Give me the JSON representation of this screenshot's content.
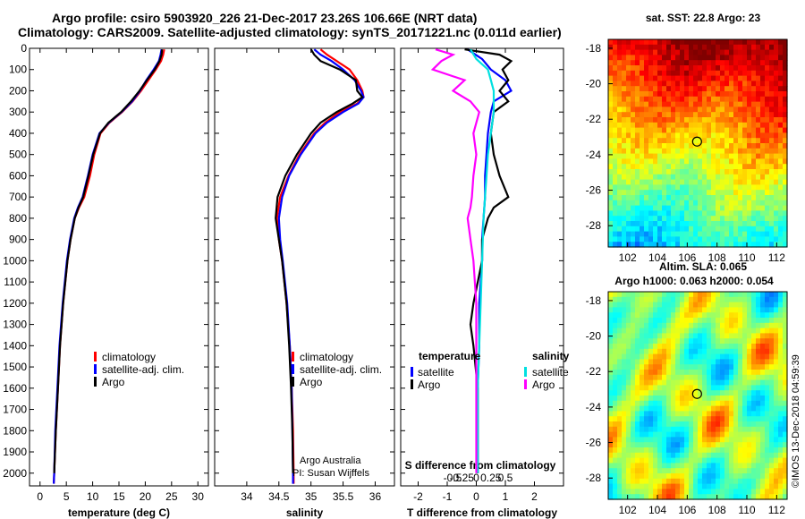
{
  "title": {
    "line1": "Argo profile: csiro 5903920_226 21-Dec-2017 23.26S 106.66E (NRT data)",
    "line2": "Climatology: CARS2009. Satellite-adjusted climatology: synTS_20171221.nc (0.011d earlier)"
  },
  "colors": {
    "climatology": "#ff0000",
    "satellite": "#0000ff",
    "argo": "#000000",
    "sal_satellite": "#00e0e0",
    "sal_argo": "#ff00ff"
  },
  "credit": {
    "line1": "Argo Australia",
    "line2": "PI: Susan Wijffels"
  },
  "watermark": "©IMOS 13-Dec-2018 04:59:39",
  "depth_ticks": [
    0,
    100,
    200,
    300,
    400,
    500,
    600,
    700,
    800,
    900,
    1000,
    1100,
    1200,
    1300,
    1400,
    1500,
    1600,
    1700,
    1800,
    1900,
    2000
  ],
  "chart_data": [
    {
      "type": "line",
      "id": "temperature",
      "xlabel": "temperature (deg C)",
      "ylabel": "pressure",
      "xlim": [
        -2,
        32
      ],
      "ylim": [
        0,
        2060
      ],
      "xticks": [
        0,
        5,
        10,
        15,
        20,
        25,
        30
      ],
      "legend": [
        "climatology",
        "satellite-adj. clim.",
        "Argo"
      ],
      "series": [
        {
          "name": "climatology",
          "color": "#ff0000",
          "depth": [
            5,
            30,
            60,
            100,
            150,
            200,
            250,
            300,
            350,
            400,
            500,
            600,
            700,
            750,
            800,
            900,
            1000,
            1200,
            1400,
            1600,
            1800,
            2000,
            2050
          ],
          "values": [
            23.6,
            23.4,
            23.0,
            22.0,
            20.6,
            19.2,
            17.6,
            15.6,
            13.2,
            11.5,
            10.3,
            9.5,
            8.4,
            7.4,
            6.6,
            5.8,
            5.2,
            4.4,
            3.8,
            3.4,
            3.0,
            2.7,
            2.6
          ]
        },
        {
          "name": "satellite-adj. clim.",
          "color": "#0000ff",
          "depth": [
            5,
            30,
            60,
            100,
            150,
            200,
            250,
            300,
            350,
            400,
            500,
            600,
            700,
            750,
            800,
            900,
            1000,
            1200,
            1400,
            1600,
            1800,
            2000,
            2050
          ],
          "values": [
            23.1,
            22.9,
            22.6,
            21.6,
            20.2,
            19.0,
            17.5,
            15.5,
            13.1,
            11.3,
            10.0,
            9.1,
            8.1,
            7.2,
            6.5,
            5.7,
            5.1,
            4.3,
            3.7,
            3.3,
            2.9,
            2.7,
            2.6
          ]
        },
        {
          "name": "Argo",
          "color": "#000000",
          "depth": [
            5,
            30,
            60,
            100,
            150,
            200,
            250,
            300,
            350,
            400,
            500,
            600,
            700,
            750,
            800,
            900,
            1000,
            1200,
            1400,
            1600,
            1800,
            2000
          ],
          "values": [
            23.2,
            23.1,
            22.7,
            21.8,
            20.3,
            18.9,
            17.3,
            15.4,
            13.0,
            11.4,
            10.1,
            9.2,
            8.2,
            7.3,
            6.6,
            5.8,
            5.2,
            4.4,
            3.8,
            3.4,
            3.0,
            2.7
          ]
        }
      ]
    },
    {
      "type": "line",
      "id": "salinity",
      "xlabel": "salinity",
      "xlim": [
        33.5,
        36.3
      ],
      "ylim": [
        0,
        2060
      ],
      "xticks": [
        34,
        34.5,
        35,
        35.5,
        36
      ],
      "xticklabels": [
        "34",
        "34.5",
        "35",
        "35.5",
        "36"
      ],
      "legend": [
        "climatology",
        "satellite-adj. clim.",
        "Argo"
      ],
      "series": [
        {
          "name": "climatology",
          "color": "#ff0000",
          "depth": [
            5,
            30,
            60,
            100,
            150,
            200,
            230,
            260,
            300,
            350,
            400,
            500,
            600,
            700,
            800,
            900,
            1000,
            1200,
            1400,
            1600,
            1800,
            2000,
            2050
          ],
          "values": [
            35.15,
            35.25,
            35.4,
            35.6,
            35.72,
            35.8,
            35.82,
            35.72,
            35.45,
            35.22,
            35.05,
            34.82,
            34.65,
            34.52,
            34.47,
            34.5,
            34.55,
            34.62,
            34.67,
            34.7,
            34.72,
            34.73,
            34.73
          ]
        },
        {
          "name": "satellite-adj. clim.",
          "color": "#0000ff",
          "depth": [
            5,
            30,
            60,
            100,
            150,
            200,
            230,
            260,
            300,
            350,
            400,
            500,
            600,
            700,
            800,
            900,
            1000,
            1200,
            1400,
            1600,
            1800,
            2000,
            2050
          ],
          "values": [
            35.05,
            35.15,
            35.32,
            35.5,
            35.68,
            35.78,
            35.82,
            35.74,
            35.5,
            35.25,
            35.07,
            34.84,
            34.66,
            34.55,
            34.5,
            34.52,
            34.56,
            34.63,
            34.67,
            34.7,
            34.71,
            34.72,
            34.72
          ]
        },
        {
          "name": "Argo",
          "color": "#000000",
          "depth": [
            5,
            30,
            60,
            100,
            150,
            200,
            230,
            260,
            300,
            350,
            400,
            500,
            600,
            700,
            800,
            900,
            1000,
            1200,
            1400,
            1600,
            1800,
            2000
          ],
          "values": [
            35.0,
            35.05,
            35.15,
            35.45,
            35.7,
            35.72,
            35.8,
            35.65,
            35.4,
            35.15,
            35.0,
            34.78,
            34.6,
            34.48,
            34.45,
            34.5,
            34.55,
            34.62,
            34.66,
            34.69,
            34.71,
            34.72
          ]
        }
      ]
    },
    {
      "type": "line",
      "id": "difference",
      "xlabel": "T difference from climatology",
      "xlabel_top": "S difference from climatology",
      "xlim": [
        -2.6,
        3.0
      ],
      "ylim": [
        0,
        2060
      ],
      "xticks": [
        -2,
        -1,
        0,
        1,
        2
      ],
      "xticklabels": [
        "-2",
        "-1",
        "0",
        "1",
        "2"
      ],
      "xticks2": [
        -1,
        -0.5,
        0,
        0.5,
        1
      ],
      "xticklabels2": [
        "-0.5",
        "-0.25",
        "0",
        "0.25",
        "0.5"
      ],
      "legend_groups": [
        {
          "heading": "temperature",
          "entries": [
            "satellite",
            "Argo"
          ]
        },
        {
          "heading": "salinity",
          "entries": [
            "satellite",
            "Argo"
          ]
        }
      ],
      "series": [
        {
          "name": "temperature satellite",
          "color": "#0000ff",
          "depth": [
            5,
            50,
            100,
            150,
            200,
            250,
            300,
            400,
            500,
            600,
            700,
            800,
            900,
            1000,
            1200,
            1400,
            1600,
            1800,
            2000
          ],
          "values": [
            -0.3,
            0.2,
            0.5,
            1.0,
            1.2,
            0.6,
            0.5,
            0.4,
            0.35,
            0.3,
            0.3,
            0.25,
            0.2,
            0.2,
            0.1,
            0.1,
            0.05,
            0.05,
            0.05
          ]
        },
        {
          "name": "temperature Argo",
          "color": "#000000",
          "depth": [
            5,
            30,
            60,
            100,
            150,
            200,
            250,
            300,
            400,
            500,
            600,
            700,
            750,
            800,
            900,
            1000,
            1200,
            1300,
            1400,
            1600,
            1800,
            2000
          ],
          "values": [
            -0.4,
            0.8,
            1.2,
            0.9,
            1.1,
            0.8,
            1.1,
            0.6,
            0.5,
            0.6,
            0.8,
            1.1,
            0.6,
            0.4,
            0.2,
            0.2,
            -0.1,
            -0.2,
            -0.1,
            0.05,
            0.05,
            0.05
          ]
        },
        {
          "name": "salinity satellite",
          "color": "#00e0e0",
          "depth": [
            5,
            50,
            100,
            150,
            200,
            300,
            400,
            500,
            600,
            700,
            800,
            1000,
            1200,
            1400,
            1600,
            1800,
            2000
          ],
          "values": [
            -0.2,
            0.0,
            0.4,
            0.5,
            0.6,
            0.6,
            0.5,
            0.4,
            0.35,
            0.3,
            0.25,
            0.2,
            0.15,
            0.1,
            0.05,
            0.05,
            0.05
          ]
        },
        {
          "name": "salinity Argo",
          "color": "#ff00ff",
          "depth": [
            5,
            30,
            60,
            100,
            150,
            200,
            250,
            300,
            400,
            500,
            600,
            700,
            750,
            800,
            900,
            1000,
            1200,
            1400,
            1600,
            1800,
            2000
          ],
          "values": [
            -1.4,
            -0.8,
            -1.2,
            -1.5,
            -0.4,
            -0.8,
            -0.2,
            0.1,
            -0.1,
            0.0,
            -0.1,
            -0.15,
            -0.2,
            -0.3,
            -0.2,
            -0.1,
            0.0,
            0.0,
            0.0,
            0.0,
            0.0
          ]
        }
      ]
    },
    {
      "type": "heatmap",
      "id": "sst_map",
      "title": "sat. SST: 22.8 Argo: 23",
      "xticklabels": [
        "102",
        "104",
        "106",
        "108",
        "110",
        "112"
      ],
      "xticks": [
        102,
        104,
        106,
        108,
        110,
        112
      ],
      "yticks": [
        -18,
        -20,
        -22,
        -24,
        -26,
        -28
      ],
      "yticklabels": [
        "-18",
        "-20",
        "-22",
        "-24",
        "-26",
        "-28"
      ],
      "xlim": [
        100.7,
        112.7
      ],
      "ylim": [
        -29.2,
        -17.5
      ],
      "marker": {
        "lon": 106.66,
        "lat": -23.26
      }
    },
    {
      "type": "heatmap",
      "id": "sla_map",
      "title": "Altim. SLA: 0.065",
      "subtitle": "Argo h1000: 0.063 h2000: 0.054",
      "xticklabels": [
        "102",
        "104",
        "106",
        "108",
        "110",
        "112"
      ],
      "xticks": [
        102,
        104,
        106,
        108,
        110,
        112
      ],
      "yticks": [
        -18,
        -20,
        -22,
        -24,
        -26,
        -28
      ],
      "yticklabels": [
        "-18",
        "-20",
        "-22",
        "-24",
        "-26",
        "-28"
      ],
      "xlim": [
        100.7,
        112.7
      ],
      "ylim": [
        -29.2,
        -17.5
      ],
      "marker": {
        "lon": 106.66,
        "lat": -23.26
      }
    }
  ]
}
